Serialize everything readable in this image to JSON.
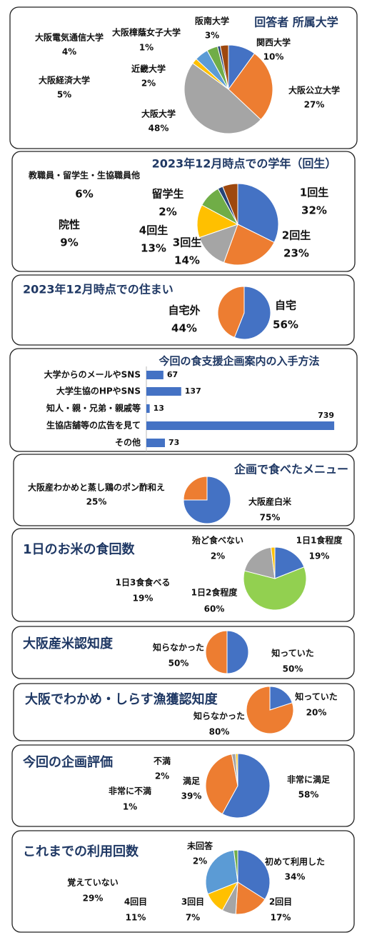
{
  "chart_data": [
    {
      "type": "pie",
      "title": "回答者 所属大学",
      "categories": [
        "関西大学",
        "大阪公立大学",
        "大阪大学",
        "近畿大学",
        "大阪経済大学",
        "大阪電気通信大学",
        "大阪樟蔭女子大学",
        "阪南大学"
      ],
      "values": [
        10,
        27,
        48,
        2,
        5,
        4,
        1,
        3
      ],
      "value_labels": [
        "10%",
        "27%",
        "48%",
        "2%",
        "5%",
        "4%",
        "1%",
        "3%"
      ],
      "colors": [
        "#4472c4",
        "#ed7d31",
        "#a5a5a5",
        "#ffc000",
        "#5b9bd5",
        "#70ad47",
        "#264478",
        "#9e480e"
      ]
    },
    {
      "type": "pie",
      "title": "2023年12月時点での学年（回生）",
      "categories": [
        "1回生",
        "2回生",
        "3回生",
        "4回生",
        "院性",
        "留学生",
        "教職員・留学生・生協職員他"
      ],
      "values": [
        32,
        23,
        14,
        13,
        9,
        2,
        6
      ],
      "value_labels": [
        "32%",
        "23%",
        "14%",
        "13%",
        "9%",
        "2%",
        "6%"
      ],
      "colors": [
        "#4472c4",
        "#ed7d31",
        "#a5a5a5",
        "#ffc000",
        "#70ad47",
        "#264478",
        "#9e480e"
      ]
    },
    {
      "type": "pie",
      "title": "2023年12月時点での住まい",
      "categories": [
        "自宅",
        "自宅外"
      ],
      "values": [
        56,
        44
      ],
      "value_labels": [
        "56%",
        "44%"
      ],
      "colors": [
        "#4472c4",
        "#ed7d31"
      ]
    },
    {
      "type": "bar",
      "orientation": "horizontal",
      "title": "今回の食支援企画案内の入手方法",
      "categories": [
        "大学からのメールやSNS",
        "大学生協のHPやSNS",
        "知人・親・兄弟・親戚等",
        "生協店舗等の広告を見て",
        "その他"
      ],
      "values": [
        67,
        137,
        13,
        739,
        73
      ],
      "color": "#4472c4",
      "xlim": [
        0,
        750
      ]
    },
    {
      "type": "pie",
      "title": "企画で食べたメニュー",
      "categories": [
        "大阪産白米",
        "大阪産わかめと蒸し鶏のポン酢和え"
      ],
      "values": [
        75,
        25
      ],
      "value_labels": [
        "75%",
        "25%"
      ],
      "colors": [
        "#4472c4",
        "#ed7d31"
      ]
    },
    {
      "type": "pie",
      "title": "1日のお米の食回数",
      "categories": [
        "1日1食程度",
        "1日2食程度",
        "1日3食食べる",
        "殆ど食べない"
      ],
      "values": [
        19,
        60,
        19,
        2
      ],
      "value_labels": [
        "19%",
        "60%",
        "19%",
        "2%"
      ],
      "colors": [
        "#4472c4",
        "#92d050",
        "#a5a5a5",
        "#ffc000"
      ]
    },
    {
      "type": "pie",
      "title": "大阪産米認知度",
      "categories": [
        "知っていた",
        "知らなかった"
      ],
      "values": [
        50,
        50
      ],
      "value_labels": [
        "50%",
        "50%"
      ],
      "colors": [
        "#4472c4",
        "#ed7d31"
      ]
    },
    {
      "type": "pie",
      "title": "大阪でわかめ・しらす漁獲認知度",
      "categories": [
        "知っていた",
        "知らなかった"
      ],
      "values": [
        20,
        80
      ],
      "value_labels": [
        "20%",
        "80%"
      ],
      "colors": [
        "#4472c4",
        "#ed7d31"
      ]
    },
    {
      "type": "pie",
      "title": "今回の企画評価",
      "categories": [
        "非常に満足",
        "満足",
        "不満",
        "非常に不満"
      ],
      "values": [
        58,
        39,
        2,
        1
      ],
      "value_labels": [
        "58%",
        "39%",
        "2%",
        "1%"
      ],
      "colors": [
        "#4472c4",
        "#ed7d31",
        "#a5a5a5",
        "#ffc000"
      ]
    },
    {
      "type": "pie",
      "title": "これまでの利用回数",
      "categories": [
        "初めて利用した",
        "2回目",
        "3回目",
        "4回目",
        "覚えていない",
        "未回答"
      ],
      "values": [
        34,
        17,
        7,
        11,
        29,
        2
      ],
      "value_labels": [
        "34%",
        "17%",
        "7%",
        "11%",
        "29%",
        "2%"
      ],
      "colors": [
        "#4472c4",
        "#ed7d31",
        "#a5a5a5",
        "#ffc000",
        "#5b9bd5",
        "#70ad47"
      ]
    }
  ]
}
